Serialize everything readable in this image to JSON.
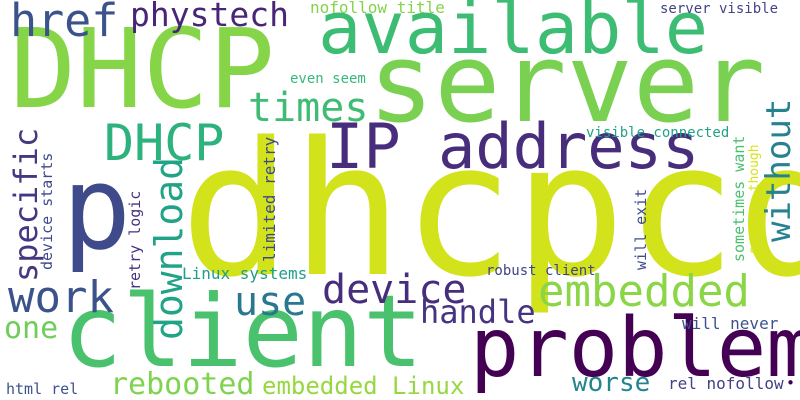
{
  "word_cloud": {
    "words": [
      {
        "id": "dhcpcd",
        "text": "dhcpcd",
        "color": "#d2e21b"
      },
      {
        "id": "server",
        "text": "server",
        "color": "#7ad151"
      },
      {
        "id": "dhcp-large",
        "text": "DHCP",
        "color": "#86d549"
      },
      {
        "id": "client",
        "text": "client",
        "color": "#4ac16d"
      },
      {
        "id": "problem",
        "text": "problem",
        "color": "#440154"
      },
      {
        "id": "available",
        "text": "available",
        "color": "#3dbc74"
      },
      {
        "id": "ip-address",
        "text": "IP address",
        "color": "#472d7b"
      },
      {
        "id": "p",
        "text": "p",
        "color": "#3e4a89"
      },
      {
        "id": "href",
        "text": "href",
        "color": "#3b528b"
      },
      {
        "id": "phystech",
        "text": "phystech",
        "color": "#482576"
      },
      {
        "id": "dhcp-small",
        "text": "DHCP",
        "color": "#2db27d"
      },
      {
        "id": "times",
        "text": "times",
        "color": "#3fbc73"
      },
      {
        "id": "embedded",
        "text": "embedded",
        "color": "#8bd646"
      },
      {
        "id": "device",
        "text": "device",
        "color": "#472e7c"
      },
      {
        "id": "work",
        "text": "work",
        "color": "#3b528b"
      },
      {
        "id": "use",
        "text": "use",
        "color": "#2a788e"
      },
      {
        "id": "handle",
        "text": "handle",
        "color": "#463480"
      },
      {
        "id": "download",
        "text": "download",
        "color": "#20a386"
      },
      {
        "id": "without",
        "text": "without",
        "color": "#26828e"
      },
      {
        "id": "specific",
        "text": "specific",
        "color": "#453781"
      },
      {
        "id": "one",
        "text": "one",
        "color": "#6ece58"
      },
      {
        "id": "rebooted",
        "text": "rebooted",
        "color": "#7fd34e"
      },
      {
        "id": "embedded-linux",
        "text": "embedded Linux",
        "color": "#95d840"
      },
      {
        "id": "worse",
        "text": "worse",
        "color": "#25858e"
      },
      {
        "id": "nofollow-title",
        "text": "nofollow title",
        "color": "#84d44b"
      },
      {
        "id": "server-visible",
        "text": "server visible",
        "color": "#414487"
      },
      {
        "id": "even-seem",
        "text": "even seem",
        "color": "#37b878"
      },
      {
        "id": "visible-connected",
        "text": "visible connected",
        "color": "#20a386"
      },
      {
        "id": "device-starts",
        "text": "device starts",
        "color": "#3e4a89"
      },
      {
        "id": "retry-logic",
        "text": "retry logic",
        "color": "#46327e"
      },
      {
        "id": "limited-retry",
        "text": "limited retry",
        "color": "#3e4989"
      },
      {
        "id": "linux-systems",
        "text": "Linux systems",
        "color": "#1f9e89"
      },
      {
        "id": "will-exit",
        "text": "will exit",
        "color": "#3e4c8a"
      },
      {
        "id": "sometimes-want",
        "text": "sometimes want",
        "color": "#4ac16d"
      },
      {
        "id": "systems-though",
        "text": "systems though",
        "color": "#d8e219"
      },
      {
        "id": "robust-client",
        "text": "robust client",
        "color": "#414487"
      },
      {
        "id": "will-never",
        "text": "will never",
        "color": "#3b528b"
      },
      {
        "id": "html-rel",
        "text": "html rel",
        "color": "#3b528b"
      },
      {
        "id": "rel-nofollow",
        "text": "rel nofollow",
        "color": "#424086"
      },
      {
        "id": "bullet",
        "text": "•",
        "color": "#440154"
      }
    ]
  }
}
